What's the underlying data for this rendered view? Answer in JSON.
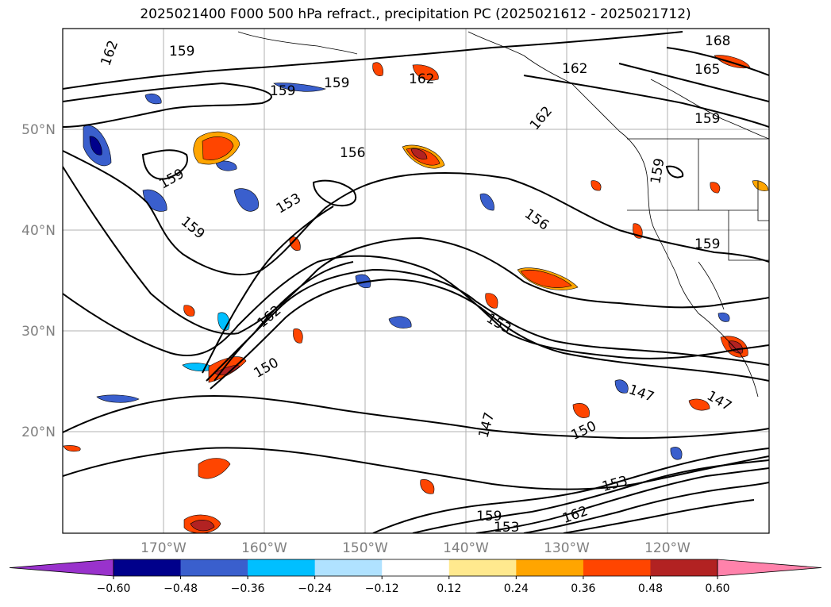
{
  "title": "2025021400 F000 500 hPa refract., precipitation PC (2025021612 - 2025021712)",
  "map": {
    "lon_ticks": [
      "170°W",
      "160°W",
      "150°W",
      "140°W",
      "130°W",
      "120°W"
    ],
    "lat_ticks": [
      "50°N",
      "40°N",
      "30°N",
      "20°N"
    ],
    "grid": true,
    "contour_labels": [
      "168",
      "165",
      "162",
      "162",
      "162",
      "162",
      "159",
      "159",
      "159",
      "159",
      "159",
      "159",
      "159",
      "156",
      "156",
      "153",
      "153",
      "153",
      "153",
      "150",
      "150",
      "147",
      "147",
      "147",
      "162",
      "162",
      "159",
      "159"
    ]
  },
  "colorbar": {
    "ticks": [
      "−0.60",
      "−0.48",
      "−0.36",
      "−0.24",
      "−0.12",
      "0.12",
      "0.24",
      "0.36",
      "0.48",
      "0.60"
    ],
    "colors": [
      "#9932CC",
      "#00008B",
      "#3A5FCD",
      "#00BFFF",
      "#B0E2FF",
      "#FFFFFF",
      "#FFE98E",
      "#FFA500",
      "#FF4500",
      "#B22222",
      "#FF82AB"
    ]
  }
}
